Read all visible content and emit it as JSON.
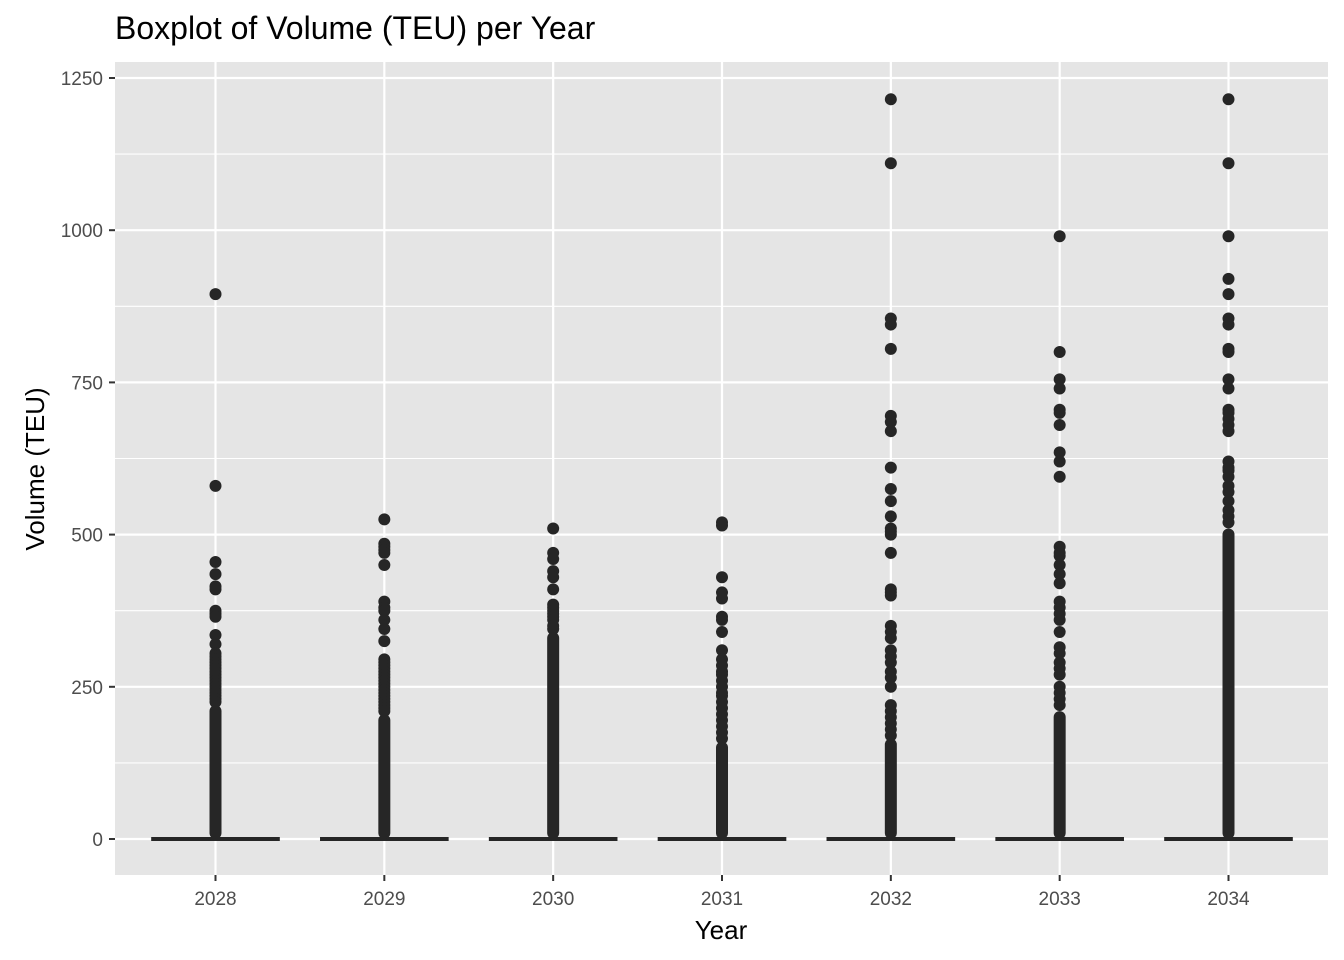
{
  "chart_data": {
    "type": "boxplot",
    "title": "Boxplot of Volume (TEU) per Year",
    "xlabel": "Year",
    "ylabel": "Volume (TEU)",
    "ylim": [
      -60,
      1265
    ],
    "yticks": [
      0,
      250,
      500,
      750,
      1000,
      1250
    ],
    "grid": true,
    "legend": "none",
    "colors": {
      "panel": "#e5e5e5",
      "grid": "#ffffff",
      "mark": "#262626",
      "tick_text": "#4d4d4d"
    },
    "categories": [
      "2028",
      "2029",
      "2030",
      "2031",
      "2032",
      "2033",
      "2034"
    ],
    "boxes": [
      {
        "year": "2028",
        "q1": 0,
        "median": 0,
        "q3": 0,
        "whisker_low": 0,
        "whisker_high": 0,
        "outlier_max_dense": 220,
        "outliers": [
          895,
          580,
          455,
          435,
          415,
          410,
          375,
          370,
          365,
          335,
          320,
          305,
          300,
          295,
          290,
          285,
          280,
          275,
          270,
          265,
          260,
          255,
          250,
          245,
          240,
          235,
          230,
          225
        ]
      },
      {
        "year": "2029",
        "q1": 0,
        "median": 0,
        "q3": 0,
        "whisker_low": 0,
        "whisker_high": 0,
        "outlier_max_dense": 205,
        "outliers": [
          525,
          485,
          480,
          475,
          470,
          450,
          390,
          380,
          375,
          360,
          345,
          325,
          295,
          290,
          285,
          280,
          275,
          270,
          265,
          260,
          255,
          250,
          245,
          240,
          235,
          230,
          225,
          220,
          215,
          210
        ]
      },
      {
        "year": "2030",
        "q1": 0,
        "median": 0,
        "q3": 0,
        "whisker_low": 0,
        "whisker_high": 0,
        "outlier_max_dense": 340,
        "outliers": [
          510,
          470,
          460,
          440,
          430,
          410,
          385,
          380,
          375,
          370,
          365,
          360,
          350,
          345
        ]
      },
      {
        "year": "2031",
        "q1": 0,
        "median": 0,
        "q3": 0,
        "whisker_low": 0,
        "whisker_high": 0,
        "outlier_max_dense": 160,
        "outliers": [
          520,
          515,
          430,
          405,
          395,
          365,
          360,
          340,
          310,
          295,
          285,
          275,
          270,
          260,
          250,
          240,
          235,
          225,
          215,
          205,
          195,
          185,
          175,
          165
        ]
      },
      {
        "year": "2032",
        "q1": 0,
        "median": 0,
        "q3": 0,
        "whisker_low": 0,
        "whisker_high": 0,
        "outlier_max_dense": 165,
        "outliers": [
          1215,
          1110,
          855,
          845,
          805,
          695,
          685,
          670,
          610,
          575,
          555,
          530,
          510,
          505,
          500,
          470,
          410,
          405,
          400,
          350,
          340,
          330,
          310,
          300,
          290,
          275,
          265,
          250,
          220,
          210,
          200,
          190,
          180,
          170
        ]
      },
      {
        "year": "2033",
        "q1": 0,
        "median": 0,
        "q3": 0,
        "whisker_low": 0,
        "whisker_high": 0,
        "outlier_max_dense": 210,
        "outliers": [
          990,
          800,
          755,
          740,
          705,
          700,
          680,
          635,
          620,
          595,
          480,
          470,
          465,
          450,
          435,
          420,
          390,
          380,
          370,
          360,
          340,
          315,
          305,
          290,
          280,
          270,
          250,
          240,
          230,
          220
        ]
      },
      {
        "year": "2034",
        "q1": 0,
        "median": 0,
        "q3": 0,
        "whisker_low": 0,
        "whisker_high": 0,
        "outlier_max_dense": 510,
        "outliers": [
          1215,
          1110,
          990,
          920,
          895,
          855,
          845,
          805,
          800,
          755,
          740,
          705,
          700,
          690,
          680,
          670,
          620,
          610,
          605,
          595,
          580,
          570,
          555,
          540,
          530,
          520
        ]
      }
    ]
  }
}
